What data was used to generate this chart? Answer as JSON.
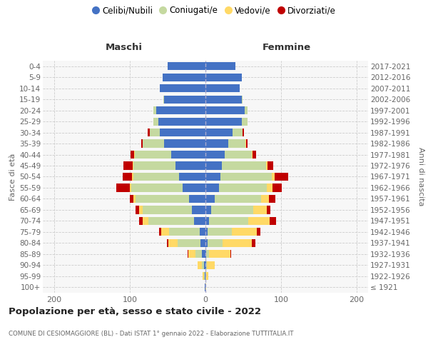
{
  "age_groups": [
    "100+",
    "95-99",
    "90-94",
    "85-89",
    "80-84",
    "75-79",
    "70-74",
    "65-69",
    "60-64",
    "55-59",
    "50-54",
    "45-49",
    "40-44",
    "35-39",
    "30-34",
    "25-29",
    "20-24",
    "15-19",
    "10-14",
    "5-9",
    "0-4"
  ],
  "birth_years": [
    "≤ 1921",
    "1922-1926",
    "1927-1931",
    "1932-1936",
    "1937-1941",
    "1942-1946",
    "1947-1951",
    "1952-1956",
    "1957-1961",
    "1962-1966",
    "1967-1971",
    "1972-1976",
    "1977-1981",
    "1982-1986",
    "1987-1991",
    "1992-1996",
    "1997-2001",
    "2002-2006",
    "2007-2011",
    "2012-2016",
    "2017-2021"
  ],
  "maschi": {
    "celibi": [
      1,
      1,
      2,
      5,
      7,
      8,
      15,
      18,
      22,
      30,
      35,
      40,
      45,
      55,
      60,
      62,
      65,
      55,
      60,
      57,
      50
    ],
    "coniugati": [
      0,
      1,
      3,
      8,
      30,
      40,
      60,
      65,
      70,
      68,
      60,
      55,
      48,
      28,
      14,
      7,
      4,
      1,
      0,
      0,
      0
    ],
    "vedovi": [
      0,
      2,
      5,
      10,
      12,
      10,
      8,
      5,
      3,
      2,
      2,
      1,
      1,
      0,
      0,
      0,
      0,
      0,
      0,
      0,
      0
    ],
    "divorziati": [
      0,
      0,
      0,
      1,
      2,
      3,
      5,
      4,
      5,
      18,
      12,
      12,
      5,
      2,
      2,
      0,
      0,
      0,
      0,
      0,
      0
    ]
  },
  "femmine": {
    "nubili": [
      0,
      0,
      1,
      1,
      3,
      3,
      5,
      8,
      12,
      18,
      20,
      22,
      25,
      30,
      36,
      48,
      52,
      48,
      45,
      48,
      40
    ],
    "coniugate": [
      0,
      1,
      1,
      4,
      20,
      32,
      52,
      55,
      62,
      63,
      68,
      58,
      36,
      23,
      13,
      8,
      4,
      1,
      0,
      0,
      0
    ],
    "vedove": [
      1,
      3,
      10,
      28,
      38,
      33,
      28,
      18,
      10,
      8,
      3,
      2,
      1,
      1,
      0,
      0,
      0,
      0,
      0,
      0,
      0
    ],
    "divorziate": [
      0,
      0,
      0,
      1,
      5,
      5,
      8,
      5,
      8,
      12,
      18,
      8,
      5,
      2,
      2,
      0,
      0,
      0,
      0,
      0,
      0
    ]
  },
  "colors": {
    "celibi_nubili": "#4472C4",
    "coniugati": "#c5d9a0",
    "vedovi": "#ffd966",
    "divorziati": "#c00000"
  },
  "xlim": 215,
  "xticks": [
    -200,
    -100,
    0,
    100,
    200
  ],
  "title": "Popolazione per età, sesso e stato civile - 2022",
  "subtitle": "COMUNE DI CESIOMAGGIORE (BL) - Dati ISTAT 1° gennaio 2022 - Elaborazione TUTTITALIA.IT",
  "ylabel_left": "Fasce di età",
  "ylabel_right": "Anni di nascita",
  "maschi_label": "Maschi",
  "femmine_label": "Femmine",
  "legend_labels": [
    "Celibi/Nubili",
    "Coniugati/e",
    "Vedovi/e",
    "Divorziati/e"
  ],
  "bg_color": "#f7f7f7"
}
